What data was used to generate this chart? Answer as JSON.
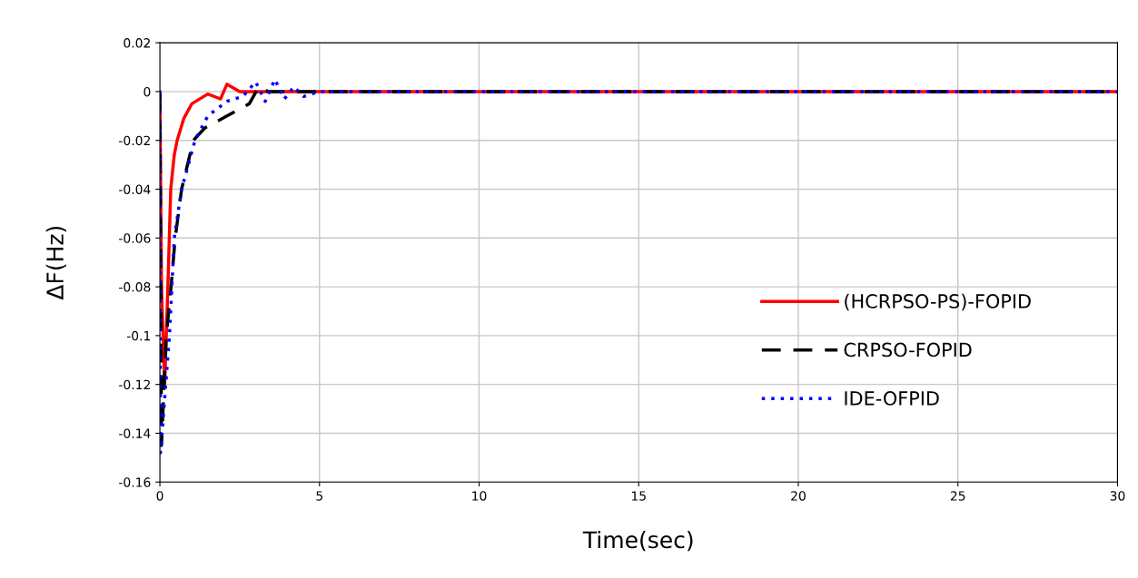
{
  "chart_data": {
    "type": "line",
    "xlabel": "Time(sec)",
    "ylabel": "ΔF(Hz)",
    "xlim": [
      0,
      30
    ],
    "xticks": [
      0,
      5,
      10,
      15,
      20,
      25,
      30
    ],
    "ylim": [
      -0.16,
      0.02
    ],
    "yticks": [
      -0.16,
      -0.14,
      -0.12,
      -0.1,
      -0.08,
      -0.06,
      -0.04,
      -0.02,
      0,
      0.02
    ],
    "grid": true,
    "legend": "bottom right",
    "series": [
      {
        "name": "(HCRPSO-PS)-FOPID",
        "color": "#ff0000",
        "line_style": "solid",
        "x": [
          0,
          0.05,
          0.15,
          0.25,
          0.34,
          0.45,
          0.54,
          0.75,
          1.0,
          1.5,
          1.9,
          2.1,
          2.5,
          3,
          5,
          30
        ],
        "values": [
          0,
          -0.08,
          -0.12,
          -0.08,
          -0.04,
          -0.026,
          -0.02,
          -0.011,
          -0.005,
          -0.001,
          -0.003,
          0.003,
          0,
          0,
          0,
          0
        ]
      },
      {
        "name": "CRPSO-FOPID",
        "color": "#000000",
        "line_style": "dashed",
        "x": [
          0,
          0.05,
          0.2,
          0.35,
          0.48,
          0.68,
          1.05,
          1.4,
          2.1,
          2.8,
          3.1,
          3.4,
          4,
          5,
          30
        ],
        "values": [
          0,
          -0.145,
          -0.1,
          -0.08,
          -0.06,
          -0.04,
          -0.02,
          -0.015,
          -0.01,
          -0.005,
          0.002,
          0,
          0,
          0,
          0
        ]
      },
      {
        "name": "IDE-OFPID",
        "color": "#0000ff",
        "line_style": "dotted",
        "x": [
          0,
          0.02,
          0.3,
          0.45,
          0.68,
          1.1,
          1.5,
          2.1,
          2.6,
          3.0,
          3.3,
          3.6,
          3.9,
          4.2,
          4.5,
          5,
          30
        ],
        "values": [
          0,
          -0.148,
          -0.1,
          -0.06,
          -0.04,
          -0.02,
          -0.01,
          -0.004,
          -0.002,
          0.004,
          -0.004,
          0.005,
          -0.003,
          0.002,
          -0.002,
          0,
          0
        ]
      }
    ]
  }
}
